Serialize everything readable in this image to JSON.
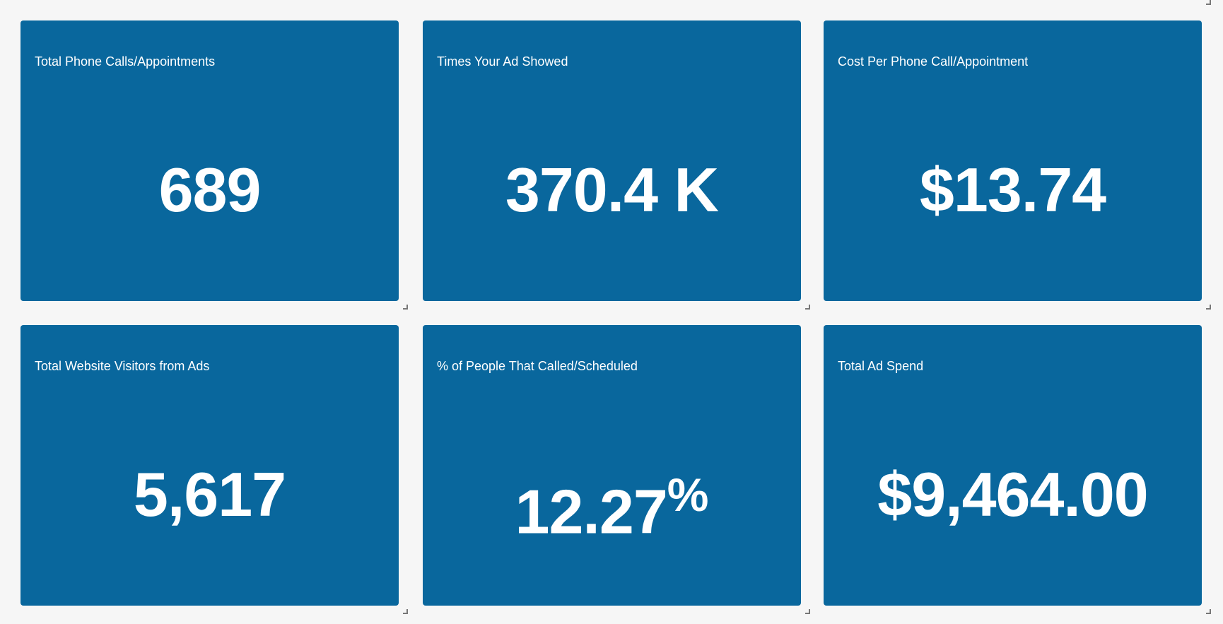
{
  "colors": {
    "tile_background": "#09679d",
    "tile_text": "#ffffff",
    "page_background": "#f6f6f6",
    "resize_handle": "#777777"
  },
  "tiles": [
    {
      "title": "Total Phone Calls/Appointments",
      "value": "689",
      "suffix": ""
    },
    {
      "title": "Times Your Ad Showed",
      "value": "370.4 K",
      "suffix": ""
    },
    {
      "title": "Cost Per Phone Call/Appointment",
      "value": "$13.74",
      "suffix": ""
    },
    {
      "title": "Total Website Visitors from Ads",
      "value": "5,617",
      "suffix": ""
    },
    {
      "title": "% of People That Called/Scheduled",
      "value": "12.27",
      "suffix": "%"
    },
    {
      "title": "Total Ad Spend",
      "value": "$9,464.00",
      "suffix": ""
    }
  ],
  "icons": {
    "resize_handle": "resize-corner-icon"
  }
}
